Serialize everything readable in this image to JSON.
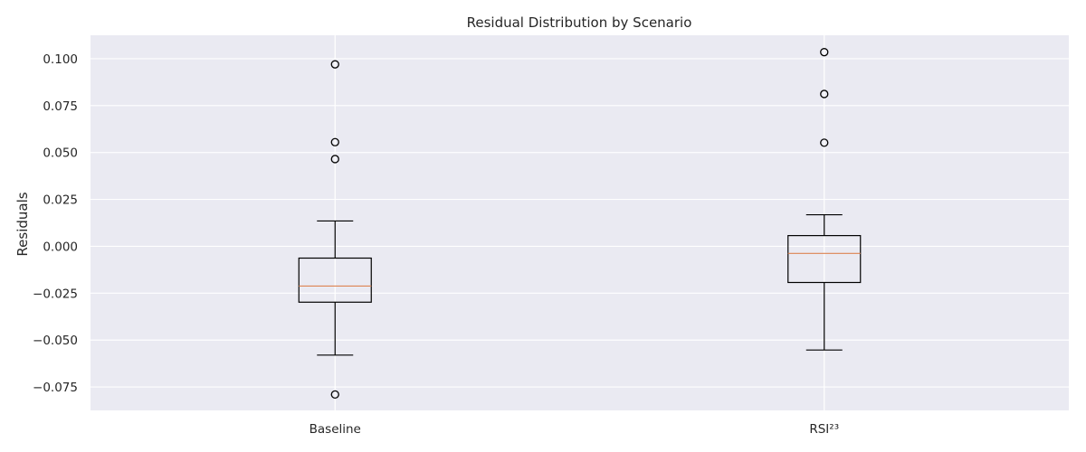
{
  "chart_data": {
    "type": "boxplot",
    "title": "Residual Distribution by Scenario",
    "xlabel": "",
    "ylabel": "Residuals",
    "ylim": [
      -0.0875,
      0.1125
    ],
    "yticks": [
      -0.075,
      -0.05,
      -0.025,
      0.0,
      0.025,
      0.05,
      0.075,
      0.1
    ],
    "ytick_labels": [
      "−0.075",
      "−0.050",
      "−0.025",
      "0.000",
      "0.025",
      "0.050",
      "0.075",
      "0.100"
    ],
    "grid": true,
    "categories": [
      "Baseline",
      "RSI²³"
    ],
    "boxes": [
      {
        "label": "Baseline",
        "whisker_low": -0.058,
        "q1": -0.0298,
        "median": -0.0212,
        "q3": -0.0063,
        "whisker_high": 0.0135,
        "outliers": [
          0.097,
          0.0555,
          0.0465,
          -0.079
        ]
      },
      {
        "label": "RSI²³",
        "whisker_low": -0.0553,
        "q1": -0.0193,
        "median": -0.0038,
        "q3": 0.0057,
        "whisker_high": 0.0168,
        "outliers": [
          0.1035,
          0.0812,
          0.0552
        ]
      }
    ],
    "colors": {
      "background": "#eaeaf2",
      "grid": "#ffffff",
      "box": "#000000",
      "median": "#dd8452"
    }
  }
}
